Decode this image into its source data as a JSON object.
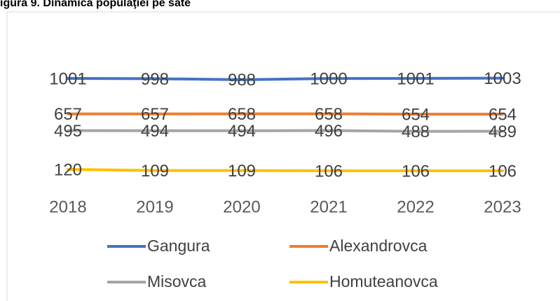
{
  "chart_data": {
    "type": "line",
    "title": "igura 9. Dinamica populaţiei pe sate",
    "categories": [
      "2018",
      "2019",
      "2020",
      "2021",
      "2022",
      "2023"
    ],
    "ylim": [
      0,
      1200
    ],
    "series": [
      {
        "name": "Gangura",
        "color": "#4472c4",
        "values": [
          1001,
          998,
          988,
          1000,
          1001,
          1003
        ]
      },
      {
        "name": "Alexandrovca",
        "color": "#ed7d31",
        "values": [
          657,
          657,
          658,
          658,
          654,
          654
        ]
      },
      {
        "name": "Misovca",
        "color": "#a5a5a5",
        "values": [
          495,
          494,
          494,
          496,
          488,
          489
        ]
      },
      {
        "name": "Homuteanovca",
        "color": "#ffc000",
        "values": [
          120,
          109,
          109,
          106,
          106,
          106
        ]
      }
    ]
  }
}
